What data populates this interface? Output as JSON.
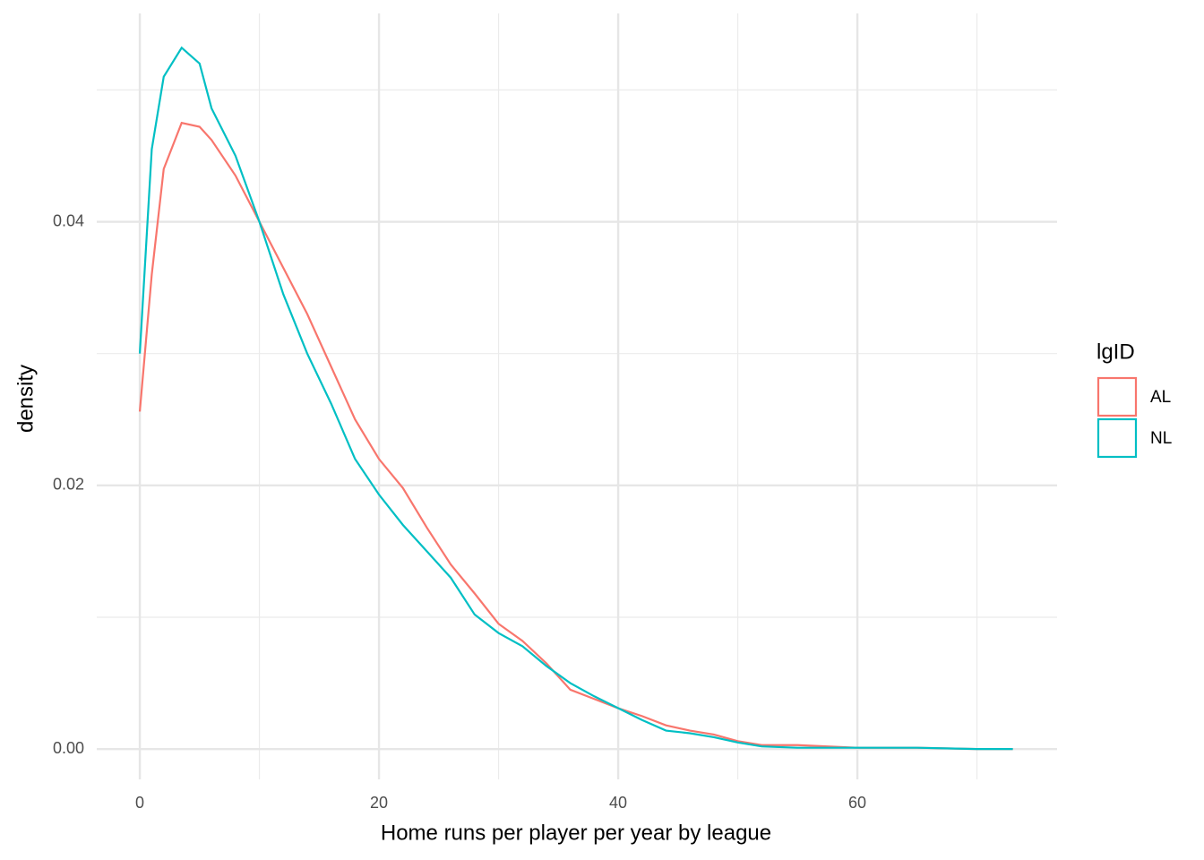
{
  "chart_data": {
    "type": "line",
    "x_label": "Home runs per player per year by league",
    "y_label": "density",
    "legend_title": "lgID",
    "legend_position": "right",
    "x": [
      0,
      1,
      2,
      3.5,
      5,
      6,
      8,
      10,
      12,
      14,
      16,
      18,
      20,
      22,
      24,
      26,
      28,
      30,
      32,
      34,
      36,
      38,
      40,
      42,
      44,
      46,
      48,
      50,
      52,
      55,
      60,
      65,
      70,
      73
    ],
    "series": [
      {
        "name": "AL",
        "color": "#f8766d",
        "values": [
          0.0256,
          0.036,
          0.044,
          0.0475,
          0.0472,
          0.0462,
          0.0435,
          0.04,
          0.0365,
          0.033,
          0.029,
          0.025,
          0.022,
          0.0198,
          0.0168,
          0.014,
          0.0118,
          0.0095,
          0.0082,
          0.0065,
          0.0045,
          0.0038,
          0.0031,
          0.0025,
          0.0018,
          0.0014,
          0.0011,
          0.0006,
          0.0003,
          0.0003,
          0.0001,
          0.0001,
          0,
          0
        ]
      },
      {
        "name": "NL",
        "color": "#00bfc4",
        "values": [
          0.03,
          0.0455,
          0.051,
          0.0532,
          0.052,
          0.0486,
          0.045,
          0.04,
          0.0345,
          0.03,
          0.0262,
          0.022,
          0.0193,
          0.017,
          0.015,
          0.013,
          0.0102,
          0.0088,
          0.0078,
          0.0063,
          0.005,
          0.004,
          0.0031,
          0.0022,
          0.0014,
          0.0012,
          0.0009,
          0.0005,
          0.0002,
          0.0001,
          0.0001,
          0.0001,
          0,
          0
        ]
      }
    ],
    "xlim": [
      -3.6,
      76.7
    ],
    "ylim": [
      -0.0023,
      0.0558
    ],
    "xticks": [
      0,
      20,
      40,
      60
    ],
    "yticks": [
      {
        "value": 0,
        "label": "0.00"
      },
      {
        "value": 0.02,
        "label": "0.02"
      },
      {
        "value": 0.04,
        "label": "0.04"
      }
    ],
    "x_minor_grid": [
      10,
      30,
      50,
      70
    ],
    "y_minor_grid": [
      0.01,
      0.03,
      0.05
    ],
    "grid": true
  }
}
